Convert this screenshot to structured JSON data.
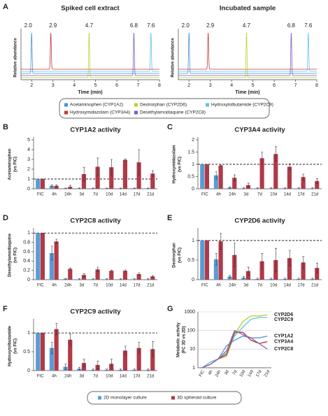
{
  "chart_data": [
    {
      "type": "chromatogram",
      "panel": "A",
      "title": "Spiked cell extract",
      "xlabel": "Time (min)",
      "ylabel": "Relative abundance",
      "xlim": [
        1.5,
        8
      ],
      "xticks": [
        2,
        3,
        4,
        5,
        6,
        7,
        8
      ],
      "peaks": [
        {
          "time": 2.0,
          "label": "2.0",
          "color": "#4a90d9"
        },
        {
          "time": 2.9,
          "label": "2.9",
          "color": "#c0393b"
        },
        {
          "time": 4.7,
          "label": "4.7",
          "color": "#b5d334"
        },
        {
          "time": 6.8,
          "label": "6.8",
          "color": "#7d5bbf"
        },
        {
          "time": 7.6,
          "label": "7.6",
          "color": "#5fc4e0"
        }
      ]
    },
    {
      "type": "chromatogram",
      "title": "Incubated sample",
      "xlabel": "Time (min)",
      "ylabel": "Relative abundance",
      "xlim": [
        1.5,
        8
      ],
      "xticks": [
        2,
        3,
        4,
        5,
        6,
        7,
        8
      ],
      "peaks": [
        {
          "time": 2.0,
          "label": "2.0",
          "color": "#4a90d9"
        },
        {
          "time": 2.9,
          "label": "2.9",
          "color": "#c0393b"
        },
        {
          "time": 4.7,
          "label": "4.7",
          "color": "#b5d334"
        },
        {
          "time": 6.8,
          "label": "6.8",
          "color": "#7d5bbf"
        },
        {
          "time": 7.6,
          "label": "7.6",
          "color": "#5fc4e0"
        }
      ]
    },
    {
      "type": "legend",
      "entries": [
        {
          "name": "Acetaminophen (CYP1A2)",
          "color": "#4a90d9"
        },
        {
          "name": "Dextrorphan (CYP2D6)",
          "color": "#b5d334"
        },
        {
          "name": "Hydroxytolbutamide (CYP2C9)",
          "color": "#5fc4e0"
        },
        {
          "name": "Hydroxymidazolam (CYP3A4)",
          "color": "#c0393b"
        },
        {
          "name": "Desethylamodiaquine (CYP2C8)",
          "color": "#7d5bbf"
        }
      ]
    },
    {
      "type": "bar",
      "panel": "B",
      "title": "CYP1A2 activity",
      "ylabel": [
        "Acetaminophen",
        "(vs FIC)"
      ],
      "categories": [
        "FIC",
        "4h",
        "24h",
        "3d",
        "7d",
        "10d",
        "14d",
        "17d",
        "21d"
      ],
      "ylim": [
        0,
        5
      ],
      "yticks": [
        0,
        1,
        2,
        3,
        4,
        5
      ],
      "reference": 1,
      "series": [
        {
          "color": "#5b9bd5",
          "values": [
            1,
            0.3,
            0.05,
            0.05,
            0.05,
            0.05,
            0.05,
            0.05,
            0.05
          ],
          "errors": [
            0,
            0.1,
            0.03,
            0.03,
            0.03,
            0.03,
            0.03,
            0.03,
            0.03
          ]
        },
        {
          "color": "#b03a48",
          "values": [
            1,
            0.3,
            0.2,
            1.5,
            2.25,
            2.2,
            2.95,
            2.7,
            1.55
          ],
          "errors": [
            0,
            0.1,
            0.15,
            0.7,
            0.9,
            0.8,
            0.1,
            1.3,
            0.3
          ]
        }
      ]
    },
    {
      "type": "bar",
      "panel": "C",
      "title": "CYP3A4 activity",
      "ylabel": [
        "Hydroxymidazolam",
        "(vs FIC)"
      ],
      "categories": [
        "FIC",
        "4h",
        "24h",
        "3d",
        "7d",
        "10d",
        "14d",
        "17d",
        "21d"
      ],
      "ylim": [
        0,
        2
      ],
      "yticks": [
        0,
        0.5,
        1,
        1.5,
        2
      ],
      "reference": 1,
      "series": [
        {
          "color": "#5b9bd5",
          "values": [
            1,
            0.55,
            0.05,
            0.02,
            0.02,
            0.02,
            0.02,
            0.02,
            0.02
          ],
          "errors": [
            0,
            0.15,
            0.03,
            0.02,
            0.02,
            0.02,
            0.02,
            0.02,
            0.02
          ]
        },
        {
          "color": "#b03a48",
          "values": [
            1,
            0.95,
            0.45,
            0.15,
            1.25,
            1.42,
            0.9,
            0.48,
            0.32
          ],
          "errors": [
            0,
            0.02,
            0.12,
            0.08,
            0.25,
            0.3,
            0.12,
            0.12,
            0.1
          ]
        }
      ]
    },
    {
      "type": "bar",
      "panel": "D",
      "title": "CYP2C8 activity",
      "ylabel": [
        "Desethylamodiaquine",
        "(vs FIC)"
      ],
      "categories": [
        "FIC",
        "4h",
        "24h",
        "3d",
        "7d",
        "10d",
        "14d",
        "17d",
        "21d"
      ],
      "ylim": [
        0,
        1.05
      ],
      "yticks": [
        0,
        0.2,
        0.4,
        0.6,
        0.8,
        1
      ],
      "reference": 1,
      "series": [
        {
          "color": "#5b9bd5",
          "values": [
            1,
            0.57,
            0.02,
            0.01,
            0.01,
            0.01,
            0.01,
            0.01,
            0.01
          ],
          "errors": [
            0,
            0.15,
            0.01,
            0.01,
            0.01,
            0.01,
            0.01,
            0.01,
            0.01
          ]
        },
        {
          "color": "#b03a48",
          "values": [
            1,
            0.82,
            0.23,
            0.1,
            0.22,
            0.19,
            0.19,
            0.12,
            0.07
          ],
          "errors": [
            0,
            0.05,
            0.02,
            0.03,
            0.05,
            0.01,
            0.02,
            0.03,
            0.02
          ]
        }
      ]
    },
    {
      "type": "bar",
      "panel": "E",
      "title": "CYP2D6 activity",
      "ylabel": [
        "Dextrorphan",
        "(vs FIC)"
      ],
      "categories": [
        "FIC",
        "4h",
        "24h",
        "3d",
        "7d",
        "10d",
        "14d",
        "17d",
        "21d"
      ],
      "ylim": [
        0,
        1.25
      ],
      "yticks": [
        0,
        0.5,
        1
      ],
      "reference": 1,
      "series": [
        {
          "color": "#5b9bd5",
          "values": [
            1,
            0.52,
            0.08,
            0.05,
            0.02,
            0.02,
            0.02,
            0.02,
            0.02
          ],
          "errors": [
            0,
            0.15,
            0.03,
            0.03,
            0.02,
            0.02,
            0.02,
            0.02,
            0.02
          ]
        },
        {
          "color": "#b03a48",
          "values": [
            1,
            0.98,
            0.63,
            0.22,
            0.47,
            0.5,
            0.55,
            0.44,
            0.3
          ],
          "errors": [
            0,
            0.2,
            0.3,
            0.1,
            0.2,
            0.3,
            0.2,
            0.15,
            0.12
          ]
        }
      ]
    },
    {
      "type": "bar",
      "panel": "F",
      "title": "CYP2C9 activity",
      "ylabel": [
        "Hydroxytolbutamide",
        "(vs FIC)"
      ],
      "categories": [
        "FIC",
        "4h",
        "24h",
        "3d",
        "7d",
        "10d",
        "14d",
        "17d",
        "21d"
      ],
      "ylim": [
        0,
        1.3
      ],
      "yticks": [
        0,
        0.5,
        1
      ],
      "reference": 1,
      "series": [
        {
          "color": "#5b9bd5",
          "values": [
            1,
            0.6,
            0.1,
            0.05,
            0.02,
            0.02,
            0.02,
            0.02,
            0.02
          ],
          "errors": [
            0,
            0.15,
            0.07,
            0.03,
            0.02,
            0.02,
            0.02,
            0.02,
            0.02
          ]
        },
        {
          "color": "#b03a48",
          "values": [
            1,
            1.1,
            0.82,
            0.2,
            0.15,
            0.18,
            0.53,
            0.6,
            0.57
          ],
          "errors": [
            0,
            0.15,
            0.15,
            0.1,
            0.1,
            0.12,
            0.12,
            0.15,
            0.2
          ]
        }
      ]
    },
    {
      "type": "line",
      "panel": "G",
      "ylabel": [
        "Metabolic activity",
        "(FC 3D vs 2D)"
      ],
      "log_scale": true,
      "grid": true,
      "categories": [
        "FIC",
        "4h",
        "24h",
        "3d",
        "7d",
        "10d",
        "14d",
        "17d",
        "21d"
      ],
      "ylim": [
        1,
        1000
      ],
      "yticks": [
        1,
        10,
        100,
        1000
      ],
      "series": [
        {
          "name": "CYP2D6",
          "color": "#b5d334",
          "values": [
            1,
            2,
            3,
            4,
            60,
            300,
            600,
            600,
            700
          ]
        },
        {
          "name": "CYP2C9",
          "color": "#6cc7e0",
          "values": [
            1,
            2,
            3,
            6,
            50,
            150,
            400,
            500,
            500
          ]
        },
        {
          "name": "CYP1A2",
          "color": "#5b9bd5",
          "values": [
            1,
            1.5,
            3,
            15,
            30,
            50,
            40,
            40,
            50
          ]
        },
        {
          "name": "CYP3A4",
          "color": "#c0393b",
          "values": [
            1,
            1.5,
            3,
            5,
            80,
            80,
            30,
            20,
            25
          ]
        },
        {
          "name": "CYP2C8",
          "color": "#8e6bbf",
          "values": [
            1,
            1.5,
            3,
            8,
            100,
            60,
            40,
            20,
            10
          ]
        }
      ]
    },
    {
      "type": "legend",
      "entries": [
        {
          "name": "2D monolayer culture",
          "color": "#5b9bd5"
        },
        {
          "name": "3D spheroid culture",
          "color": "#b03a48"
        }
      ]
    }
  ]
}
